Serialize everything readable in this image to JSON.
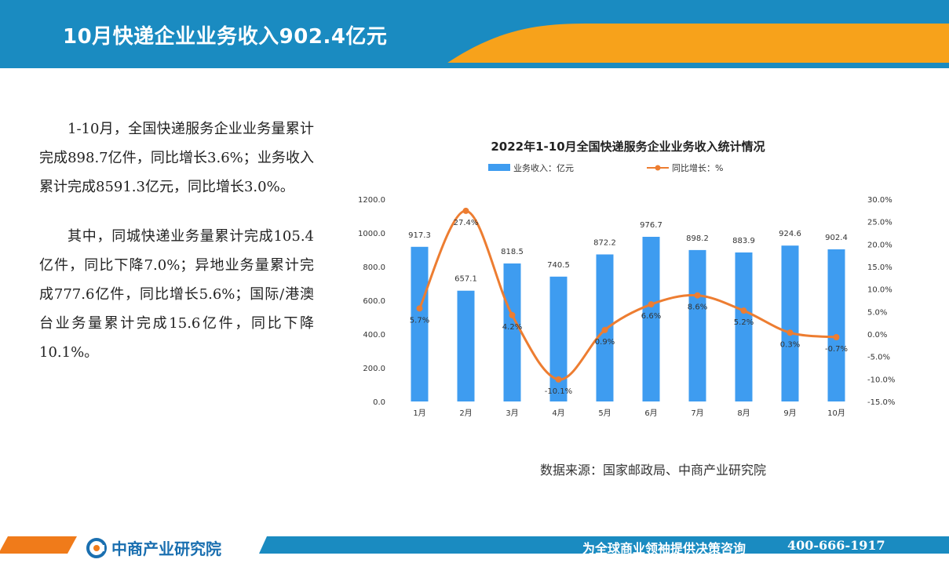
{
  "page": {
    "title": "10月快递企业业务收入902.4亿元",
    "paragraphs": [
      "1-10月，全国快递服务企业业务量累计完成898.7亿件，同比增长3.6%；业务收入累计完成8591.3亿元，同比增长3.0%。",
      "其中，同城快递业务量累计完成105.4亿件，同比下降7.0%；异地业务量累计完成777.6亿件，同比增长5.6%；国际/港澳台业务量累计完成15.6亿件，同比下降10.1%。"
    ],
    "source": "数据来源：国家邮政局、中商产业研究院",
    "footer": {
      "logo_text": "中商产业研究院",
      "slogan": "为全球商业领袖提供决策咨询",
      "phone": "400-666-1917"
    }
  },
  "colors": {
    "header_blue": "#1a8bc1",
    "header_orange": "#f7a21b",
    "bar_blue": "#3e9cf0",
    "line_orange": "#ed7d31"
  },
  "chart_data": {
    "type": "bar",
    "title": "2022年1-10月全国快递服务企业业务收入统计情况",
    "categories": [
      "1月",
      "2月",
      "3月",
      "4月",
      "5月",
      "6月",
      "7月",
      "8月",
      "9月",
      "10月"
    ],
    "series": [
      {
        "name": "业务收入：亿元",
        "type": "bar",
        "axis": "left",
        "values": [
          917.3,
          657.1,
          818.5,
          740.5,
          872.2,
          976.7,
          898.2,
          883.9,
          924.6,
          902.4
        ],
        "labels": [
          "917.3",
          "657.1",
          "818.5",
          "740.5",
          "872.2",
          "976.7",
          "898.2",
          "883.9",
          "924.6",
          "902.4"
        ]
      },
      {
        "name": "同比增长：%",
        "type": "line",
        "axis": "right",
        "values": [
          5.7,
          27.4,
          4.2,
          -10.1,
          0.9,
          6.6,
          8.6,
          5.2,
          0.3,
          -0.7
        ],
        "labels": [
          "5.7%",
          "27.4%",
          "4.2%",
          "-10.1%",
          "0.9%",
          "6.6%",
          "8.6%",
          "5.2%",
          "0.3%",
          "-0.7%"
        ]
      }
    ],
    "y_left": {
      "min": 0,
      "max": 1200,
      "ticks": [
        "0.0",
        "200.0",
        "400.0",
        "600.0",
        "800.0",
        "1000.0",
        "1200.0"
      ]
    },
    "y_right": {
      "min": -15,
      "max": 30,
      "ticks": [
        "-15.0%",
        "-10.0%",
        "-5.0%",
        "0.0%",
        "5.0%",
        "10.0%",
        "15.0%",
        "20.0%",
        "25.0%",
        "30.0%"
      ]
    },
    "legend_position": "top",
    "grid": false
  }
}
